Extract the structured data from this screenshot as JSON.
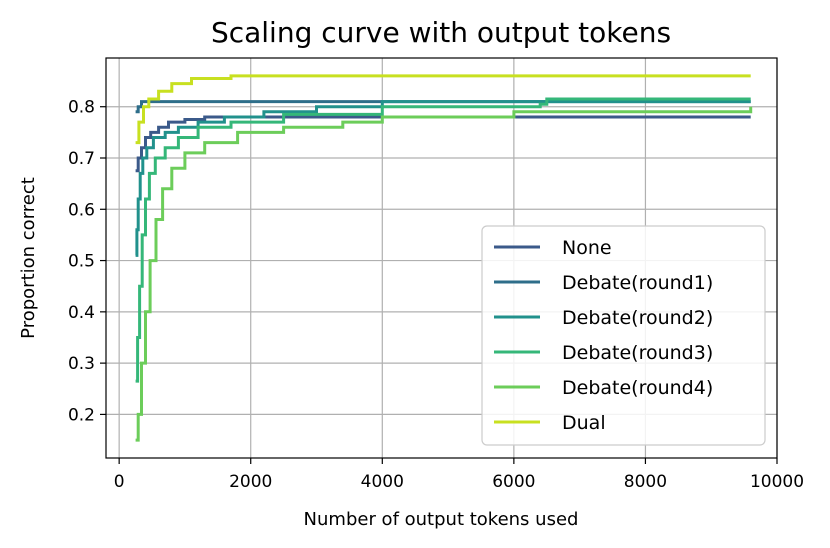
{
  "chart_data": {
    "type": "line",
    "title": "Scaling curve with output tokens",
    "xlabel": "Number of output tokens used",
    "ylabel": "Proportion correct",
    "xlim": [
      -200,
      10000
    ],
    "ylim": [
      0.115,
      0.895
    ],
    "xticks": [
      0,
      2000,
      4000,
      6000,
      8000,
      10000
    ],
    "xtick_labels": [
      "0",
      "2000",
      "4000",
      "6000",
      "8000",
      "10000"
    ],
    "yticks": [
      0.2,
      0.3,
      0.4,
      0.5,
      0.6,
      0.7,
      0.8
    ],
    "ytick_labels": [
      "0.2",
      "0.3",
      "0.4",
      "0.5",
      "0.6",
      "0.7",
      "0.8"
    ],
    "grid": true,
    "legend_position": "bottom-right",
    "series": [
      {
        "name": "None",
        "color": "#3b5a8a",
        "points": [
          [
            250,
            0.675
          ],
          [
            290,
            0.7
          ],
          [
            340,
            0.72
          ],
          [
            400,
            0.74
          ],
          [
            480,
            0.75
          ],
          [
            600,
            0.76
          ],
          [
            750,
            0.77
          ],
          [
            1000,
            0.775
          ],
          [
            1300,
            0.78
          ],
          [
            9600,
            0.78
          ]
        ]
      },
      {
        "name": "Debate(round1)",
        "color": "#2e6e8a",
        "points": [
          [
            250,
            0.79
          ],
          [
            290,
            0.8
          ],
          [
            340,
            0.81
          ],
          [
            9600,
            0.81
          ]
        ]
      },
      {
        "name": "Debate(round2)",
        "color": "#21918c",
        "points": [
          [
            250,
            0.51
          ],
          [
            270,
            0.56
          ],
          [
            290,
            0.62
          ],
          [
            320,
            0.67
          ],
          [
            360,
            0.7
          ],
          [
            420,
            0.72
          ],
          [
            520,
            0.74
          ],
          [
            700,
            0.75
          ],
          [
            900,
            0.76
          ],
          [
            1200,
            0.77
          ],
          [
            1600,
            0.78
          ],
          [
            2200,
            0.79
          ],
          [
            3000,
            0.8
          ],
          [
            4000,
            0.81
          ],
          [
            9600,
            0.81
          ]
        ]
      },
      {
        "name": "Debate(round3)",
        "color": "#35b779",
        "points": [
          [
            250,
            0.265
          ],
          [
            280,
            0.35
          ],
          [
            310,
            0.45
          ],
          [
            350,
            0.55
          ],
          [
            400,
            0.62
          ],
          [
            460,
            0.67
          ],
          [
            550,
            0.7
          ],
          [
            700,
            0.72
          ],
          [
            900,
            0.74
          ],
          [
            1200,
            0.76
          ],
          [
            1700,
            0.77
          ],
          [
            2500,
            0.785
          ],
          [
            4000,
            0.8
          ],
          [
            6400,
            0.805
          ],
          [
            6500,
            0.815
          ],
          [
            9600,
            0.815
          ]
        ]
      },
      {
        "name": "Debate(round4)",
        "color": "#6ccd5a",
        "points": [
          [
            250,
            0.15
          ],
          [
            290,
            0.2
          ],
          [
            340,
            0.3
          ],
          [
            400,
            0.4
          ],
          [
            470,
            0.5
          ],
          [
            560,
            0.58
          ],
          [
            660,
            0.64
          ],
          [
            800,
            0.68
          ],
          [
            1000,
            0.71
          ],
          [
            1300,
            0.73
          ],
          [
            1800,
            0.75
          ],
          [
            2500,
            0.76
          ],
          [
            3400,
            0.77
          ],
          [
            4000,
            0.78
          ],
          [
            6000,
            0.79
          ],
          [
            9600,
            0.8
          ]
        ]
      },
      {
        "name": "Dual",
        "color": "#c8e020",
        "points": [
          [
            250,
            0.73
          ],
          [
            300,
            0.77
          ],
          [
            370,
            0.8
          ],
          [
            450,
            0.815
          ],
          [
            600,
            0.83
          ],
          [
            800,
            0.845
          ],
          [
            1100,
            0.855
          ],
          [
            1700,
            0.86
          ],
          [
            9600,
            0.86
          ]
        ]
      }
    ]
  }
}
